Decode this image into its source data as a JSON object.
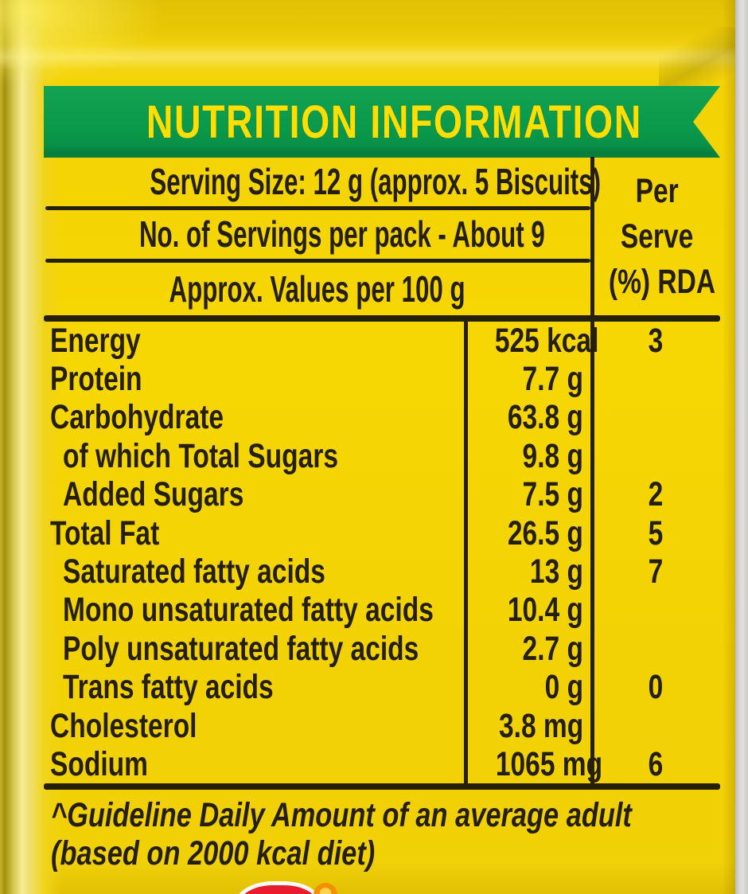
{
  "banner": {
    "title": "NUTRITION INFORMATION"
  },
  "serving_info": {
    "serving_size": "Serving Size: 12 g (approx. 5 Biscuits)",
    "servings_per_pack": "No. of Servings per pack - About 9",
    "values_basis": "Approx. Values per 100 g"
  },
  "per_serve_header": {
    "line1": "Per",
    "line2": "Serve",
    "line3": "(%) RDA"
  },
  "nutrients": [
    {
      "name": "Energy",
      "value": "525 kcal",
      "rda": "3",
      "indent": false
    },
    {
      "name": "Protein",
      "value": "7.7 g",
      "rda": "",
      "indent": false
    },
    {
      "name": "Carbohydrate",
      "value": "63.8 g",
      "rda": "",
      "indent": false
    },
    {
      "name": "of which Total Sugars",
      "value": "9.8 g",
      "rda": "",
      "indent": true
    },
    {
      "name": "Added Sugars",
      "value": "7.5 g",
      "rda": "2",
      "indent": true
    },
    {
      "name": "Total Fat",
      "value": "26.5 g",
      "rda": "5",
      "indent": false
    },
    {
      "name": "Saturated fatty acids",
      "value": "13 g",
      "rda": "7",
      "indent": true
    },
    {
      "name": "Mono unsaturated fatty acids",
      "value": "10.4 g",
      "rda": "",
      "indent": true
    },
    {
      "name": "Poly unsaturated fatty acids",
      "value": "2.7 g",
      "rda": "",
      "indent": true
    },
    {
      "name": "Trans fatty acids",
      "value": "0 g",
      "rda": "0",
      "indent": true
    },
    {
      "name": "Cholesterol",
      "value": "3.8 mg",
      "rda": "",
      "indent": false
    },
    {
      "name": "Sodium",
      "value": "1065 mg",
      "rda": "6",
      "indent": false
    }
  ],
  "footnote": {
    "line1": "^Guideline Daily Amount of an average adult",
    "line2": "(based on 2000 kcal diet)"
  },
  "colors": {
    "package_yellow": "#f4d304",
    "banner_green": "#0b9a4c",
    "banner_text_yellow": "#ffdf00",
    "ink": "#241f06",
    "edge_grey": "#dad9d5",
    "logo_red": "#e81c2c",
    "logo_orange": "#f39000"
  }
}
